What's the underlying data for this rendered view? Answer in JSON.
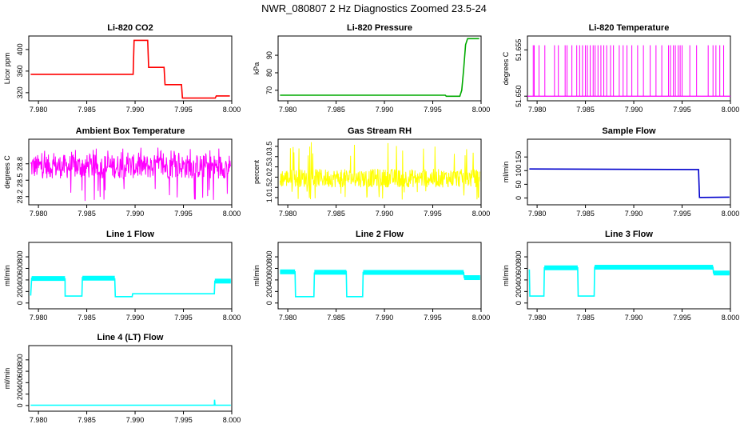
{
  "figure_title": "NWR_080807  2 Hz Diagnostics Zoomed 23.5-24",
  "chart_data": [
    {
      "type": "line",
      "title": "Li-820 CO2",
      "ylabel": "Licor ppm",
      "color": "#ff0000",
      "xlim": [
        7.979,
        8.0
      ],
      "ylim": [
        305,
        425
      ],
      "xticks": [
        "7.980",
        "7.985",
        "7.990",
        "7.995",
        "8.000"
      ],
      "yticks": [
        "320",
        "360",
        "400"
      ],
      "series": [
        {
          "x": [
            7.9792,
            7.9898,
            7.9899,
            7.9913,
            7.9914,
            7.993,
            7.9931,
            7.9948,
            7.9949,
            7.9983,
            7.9984,
            7.9998
          ],
          "y": [
            354,
            354,
            417,
            417,
            367,
            367,
            335,
            335,
            310,
            310,
            314,
            314
          ]
        }
      ]
    },
    {
      "type": "line",
      "title": "Li-820 Pressure",
      "ylabel": "kPa",
      "color": "#00aa00",
      "xlim": [
        7.979,
        8.0
      ],
      "ylim": [
        64,
        101
      ],
      "xticks": [
        "7.980",
        "7.985",
        "7.990",
        "7.995",
        "8.000"
      ],
      "yticks": [
        "70",
        "80",
        "90"
      ],
      "series": [
        {
          "x": [
            7.9792,
            7.9963,
            7.9964,
            7.9978,
            7.998,
            7.9982,
            7.9984,
            7.9986,
            7.9998
          ],
          "y": [
            67.2,
            67.2,
            66.6,
            66.6,
            70,
            82,
            96,
            99.5,
            99.5
          ]
        }
      ]
    },
    {
      "type": "line",
      "title": "Li-820 Temperature",
      "ylabel": "degrees C",
      "color": "#ff00ff",
      "xlim": [
        7.979,
        8.0
      ],
      "ylim": [
        51.6495,
        51.6565
      ],
      "xticks": [
        "7.980",
        "7.985",
        "7.990",
        "7.995",
        "8.000"
      ],
      "yticks": [
        "51.650",
        "51.655"
      ],
      "baseline": 51.65,
      "spike_top": 51.6555,
      "spikes": [
        7.9796,
        7.9797,
        7.9802,
        7.9808,
        7.9818,
        7.9822,
        7.9829,
        7.9831,
        7.9836,
        7.9841,
        7.9844,
        7.9847,
        7.985,
        7.9852,
        7.9855,
        7.9858,
        7.986,
        7.9863,
        7.9866,
        7.9869,
        7.9872,
        7.9876,
        7.9879,
        7.9885,
        7.9889,
        7.9893,
        7.9898,
        7.9904,
        7.991,
        7.9917,
        7.9923,
        7.9929,
        7.9936,
        7.9938,
        7.9941,
        7.9943,
        7.9946,
        7.9948,
        7.995,
        7.9958,
        7.9965,
        7.9977,
        7.9982,
        7.9985,
        7.9989,
        7.9993
      ]
    },
    {
      "type": "line",
      "title": "Ambient Box Temperature",
      "ylabel": "degrees C",
      "color": "#ff00ff",
      "xlim": [
        7.979,
        8.0
      ],
      "ylim": [
        28.05,
        29.25
      ],
      "xticks": [
        "7.980",
        "7.985",
        "7.990",
        "7.995",
        "8.000"
      ],
      "yticks": [
        "28.2",
        "28.5",
        "28.8"
      ],
      "noise": {
        "x0": 7.9792,
        "x1": 7.9999,
        "center": 28.75,
        "half_band": 0.22,
        "spike_low": 28.12,
        "spike_high": 29.1
      }
    },
    {
      "type": "line",
      "title": "Gas Stream RH",
      "ylabel": "percent",
      "color": "#ffff00",
      "xlim": [
        7.979,
        8.0
      ],
      "ylim": [
        0.65,
        3.85
      ],
      "xticks": [
        "7.980",
        "7.985",
        "7.990",
        "7.995",
        "8.000"
      ],
      "yticks": [
        "1.0",
        "1.5",
        "2.0",
        "2.5",
        "3.0",
        "3.5"
      ],
      "noise": {
        "x0": 7.9792,
        "x1": 7.9999,
        "center": 1.95,
        "half_band": 0.45,
        "spike_low": 0.9,
        "spike_high": 3.75
      }
    },
    {
      "type": "line",
      "title": "Sample Flow",
      "ylabel": "ml/min",
      "color": "#0000cc",
      "xlim": [
        7.979,
        8.0
      ],
      "ylim": [
        -25,
        215
      ],
      "xticks": [
        "7.980",
        "7.985",
        "7.990",
        "7.995",
        "8.000"
      ],
      "yticks": [
        "0",
        "50",
        "100",
        "150"
      ],
      "series": [
        {
          "x": [
            7.9792,
            7.9967,
            7.9968,
            7.9999
          ],
          "y": [
            106,
            104,
            2,
            3
          ]
        }
      ]
    },
    {
      "type": "line",
      "title": "Line 1 Flow",
      "ylabel": "ml/min",
      "color": "#00ffff",
      "xlim": [
        7.979,
        8.0
      ],
      "ylim": [
        -100,
        1050
      ],
      "xticks": [
        "7.980",
        "7.985",
        "7.990",
        "7.995",
        "8.000"
      ],
      "yticks": [
        "0",
        "200",
        "400",
        "600",
        "800"
      ],
      "series": [
        {
          "x": [
            7.9792,
            7.9793,
            7.98275,
            7.98276,
            7.9845,
            7.98455,
            7.9879,
            7.98795,
            7.9897,
            7.98975,
            7.9982,
            7.99825,
            7.9999
          ],
          "y": [
            130,
            430,
            420,
            120,
            120,
            440,
            420,
            110,
            110,
            160,
            160,
            380,
            380
          ]
        }
      ]
    },
    {
      "type": "line",
      "title": "Line 2 Flow",
      "ylabel": "ml/min",
      "color": "#00ffff",
      "xlim": [
        7.979,
        8.0
      ],
      "ylim": [
        -100,
        1050
      ],
      "xticks": [
        "7.980",
        "7.985",
        "7.990",
        "7.995",
        "8.000"
      ],
      "yticks": [
        "0",
        "200",
        "400",
        "600",
        "800"
      ],
      "series": [
        {
          "x": [
            7.9792,
            7.98075,
            7.9808,
            7.9827,
            7.98275,
            7.98605,
            7.9861,
            7.98775,
            7.9878,
            7.9982,
            7.99825,
            7.9999
          ],
          "y": [
            540,
            540,
            110,
            110,
            520,
            545,
            110,
            110,
            530,
            530,
            440,
            440
          ]
        }
      ]
    },
    {
      "type": "line",
      "title": "Line 3 Flow",
      "ylabel": "ml/min",
      "color": "#00ffff",
      "xlim": [
        7.979,
        8.0
      ],
      "ylim": [
        -100,
        1050
      ],
      "xticks": [
        "7.980",
        "7.985",
        "7.990",
        "7.995",
        "8.000"
      ],
      "yticks": [
        "0",
        "200",
        "400",
        "600",
        "800"
      ],
      "series": [
        {
          "x": [
            7.9792,
            7.97925,
            7.9793,
            7.9807,
            7.98075,
            7.9842,
            7.98425,
            7.9859,
            7.98595,
            7.9982,
            7.99825,
            7.9999
          ],
          "y": [
            580,
            120,
            120,
            120,
            610,
            610,
            120,
            120,
            620,
            620,
            520,
            520
          ]
        }
      ]
    },
    {
      "type": "line",
      "title": "Line 4 (LT) Flow",
      "ylabel": "ml/min",
      "color": "#00ffff",
      "xlim": [
        7.979,
        8.0
      ],
      "ylim": [
        -100,
        1050
      ],
      "xticks": [
        "7.980",
        "7.985",
        "7.990",
        "7.995",
        "8.000"
      ],
      "yticks": [
        "0",
        "200",
        "400",
        "600",
        "800"
      ],
      "series": [
        {
          "x": [
            7.9792,
            7.9982,
            7.99822,
            7.99826,
            7.9983,
            7.9999
          ],
          "y": [
            5,
            5,
            100,
            10,
            5,
            5
          ]
        }
      ]
    }
  ]
}
